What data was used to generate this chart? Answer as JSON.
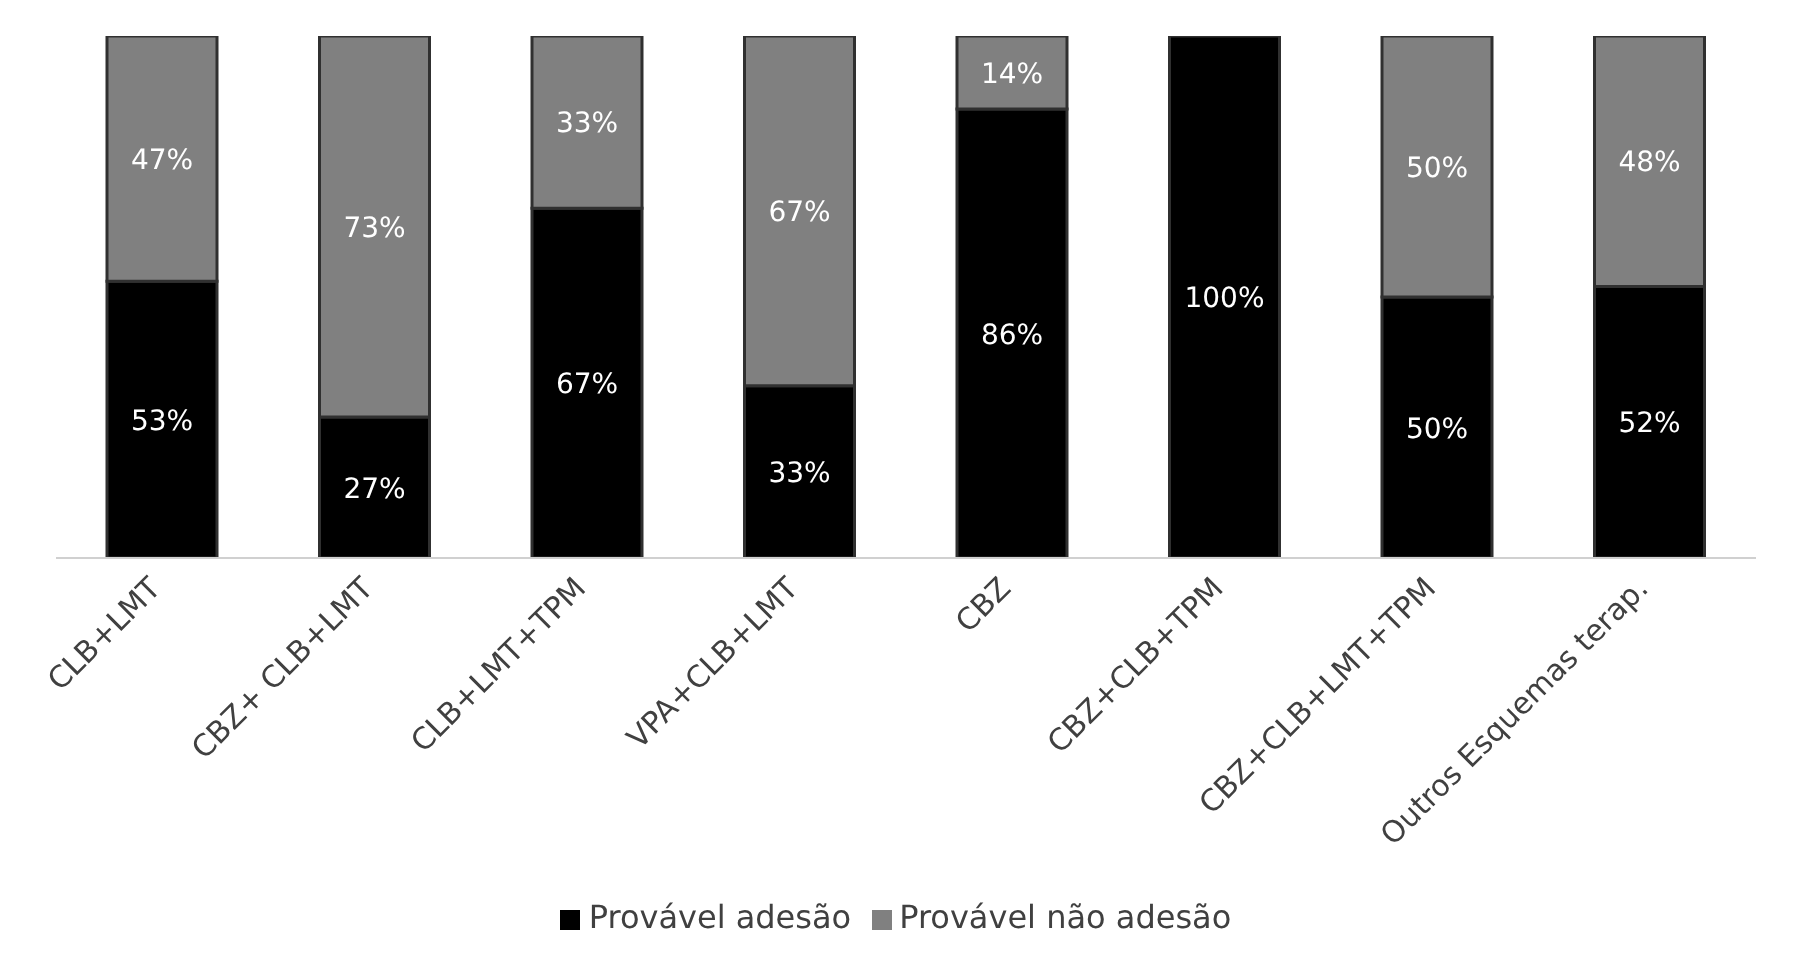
{
  "chart_data": {
    "type": "bar",
    "stacked": true,
    "categories": [
      "CLB+LMT",
      "CBZ+ CLB+LMT",
      "CLB+LMT+TPM",
      "VPA+CLB+LMT",
      "CBZ",
      "CBZ+CLB+TPM",
      "CBZ+CLB+LMT+TPM",
      "Outros Esquemas terap."
    ],
    "series": [
      {
        "name": "Provável adesão",
        "color": "#000000",
        "values": [
          53,
          27,
          67,
          33,
          86,
          100,
          50,
          52
        ],
        "value_labels": [
          "53%",
          "27%",
          "67%",
          "33%",
          "86%",
          "100%",
          "50%",
          "52%"
        ]
      },
      {
        "name": "Provável não adesão",
        "color": "#808080",
        "values": [
          47,
          73,
          33,
          67,
          14,
          0,
          50,
          48
        ],
        "value_labels": [
          "47%",
          "73%",
          "33%",
          "67%",
          "14%",
          null,
          "50%",
          "48%"
        ]
      }
    ],
    "ylim": [
      0,
      100
    ],
    "tick_labels": "x",
    "legend": "bottom"
  }
}
